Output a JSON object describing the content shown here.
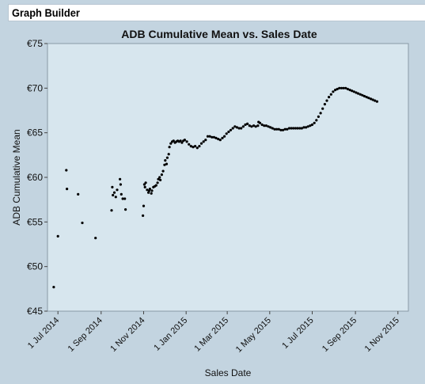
{
  "window": {
    "title": "Graph Builder"
  },
  "chart_data": {
    "type": "scatter",
    "title": "ADB Cumulative Mean vs. Sales Date",
    "xlabel": "Sales Date",
    "ylabel": "ADB Cumulative Mean",
    "x_ticks": [
      "2014-07-01",
      "2014-09-01",
      "2014-11-01",
      "2015-01-01",
      "2015-03-01",
      "2015-05-01",
      "2015-07-01",
      "2015-09-01",
      "2015-11-01"
    ],
    "x_tick_labels": [
      "1 Jul 2014",
      "1 Sep 2014",
      "1 Nov 2014",
      "1 Jan 2015",
      "1 Mar 2015",
      "1 May 2015",
      "1 Jul 2015",
      "1 Sep 2015",
      "1 Nov 2015"
    ],
    "xlim": [
      "2014-06-16",
      "2015-11-16"
    ],
    "ylim": [
      45,
      75
    ],
    "y_ticks": [
      45,
      50,
      55,
      60,
      65,
      70,
      75
    ],
    "y_tick_labels": [
      "€45",
      "€50",
      "€55",
      "€60",
      "€65",
      "€70",
      "€75"
    ],
    "grid": false,
    "marker_color": "#000000",
    "plot_background": "#d7e6ee",
    "points": [
      [
        "2014-06-25",
        47.7
      ],
      [
        "2014-07-01",
        53.4
      ],
      [
        "2014-07-13",
        60.8
      ],
      [
        "2014-07-14",
        58.7
      ],
      [
        "2014-07-30",
        58.1
      ],
      [
        "2014-08-05",
        54.9
      ],
      [
        "2014-08-24",
        53.2
      ],
      [
        "2014-09-16",
        56.3
      ],
      [
        "2014-09-17",
        58.9
      ],
      [
        "2014-09-18",
        58.0
      ],
      [
        "2014-09-20",
        58.3
      ],
      [
        "2014-09-22",
        57.8
      ],
      [
        "2014-09-24",
        58.6
      ],
      [
        "2014-09-28",
        59.8
      ],
      [
        "2014-09-29",
        59.2
      ],
      [
        "2014-09-30",
        58.1
      ],
      [
        "2014-10-02",
        57.6
      ],
      [
        "2014-10-05",
        57.6
      ],
      [
        "2014-10-06",
        56.4
      ],
      [
        "2014-10-31",
        55.7
      ],
      [
        "2014-11-01",
        56.8
      ],
      [
        "2014-11-02",
        59.2
      ],
      [
        "2014-11-03",
        58.9
      ],
      [
        "2014-11-04",
        59.4
      ],
      [
        "2014-11-06",
        58.6
      ],
      [
        "2014-11-08",
        58.3
      ],
      [
        "2014-11-09",
        58.5
      ],
      [
        "2014-11-10",
        58.7
      ],
      [
        "2014-11-12",
        58.2
      ],
      [
        "2014-11-13",
        58.5
      ],
      [
        "2014-11-15",
        58.9
      ],
      [
        "2014-11-17",
        59.0
      ],
      [
        "2014-11-19",
        59.1
      ],
      [
        "2014-11-21",
        59.4
      ],
      [
        "2014-11-22",
        59.8
      ],
      [
        "2014-11-24",
        60.0
      ],
      [
        "2014-11-25",
        59.7
      ],
      [
        "2014-11-27",
        60.3
      ],
      [
        "2014-11-29",
        60.7
      ],
      [
        "2014-12-01",
        61.4
      ],
      [
        "2014-12-02",
        61.9
      ],
      [
        "2014-12-04",
        61.5
      ],
      [
        "2014-12-05",
        62.2
      ],
      [
        "2014-12-07",
        62.6
      ],
      [
        "2014-12-08",
        63.4
      ],
      [
        "2014-12-10",
        63.8
      ],
      [
        "2014-12-12",
        64.0
      ],
      [
        "2014-12-14",
        64.1
      ],
      [
        "2014-12-16",
        63.9
      ],
      [
        "2014-12-18",
        64.0
      ],
      [
        "2014-12-20",
        64.1
      ],
      [
        "2014-12-22",
        64.0
      ],
      [
        "2014-12-24",
        64.1
      ],
      [
        "2014-12-26",
        63.9
      ],
      [
        "2014-12-28",
        64.1
      ],
      [
        "2014-12-30",
        64.2
      ],
      [
        "2015-01-02",
        64.0
      ],
      [
        "2015-01-05",
        63.7
      ],
      [
        "2015-01-08",
        63.5
      ],
      [
        "2015-01-11",
        63.4
      ],
      [
        "2015-01-14",
        63.5
      ],
      [
        "2015-01-17",
        63.3
      ],
      [
        "2015-01-20",
        63.5
      ],
      [
        "2015-01-23",
        63.8
      ],
      [
        "2015-01-26",
        64.0
      ],
      [
        "2015-01-29",
        64.2
      ],
      [
        "2015-02-01",
        64.6
      ],
      [
        "2015-02-04",
        64.6
      ],
      [
        "2015-02-07",
        64.5
      ],
      [
        "2015-02-10",
        64.5
      ],
      [
        "2015-02-13",
        64.4
      ],
      [
        "2015-02-16",
        64.3
      ],
      [
        "2015-02-19",
        64.2
      ],
      [
        "2015-02-22",
        64.4
      ],
      [
        "2015-02-25",
        64.6
      ],
      [
        "2015-02-28",
        64.9
      ],
      [
        "2015-03-03",
        65.1
      ],
      [
        "2015-03-06",
        65.3
      ],
      [
        "2015-03-09",
        65.5
      ],
      [
        "2015-03-12",
        65.7
      ],
      [
        "2015-03-15",
        65.6
      ],
      [
        "2015-03-18",
        65.5
      ],
      [
        "2015-03-21",
        65.5
      ],
      [
        "2015-03-24",
        65.7
      ],
      [
        "2015-03-27",
        65.9
      ],
      [
        "2015-03-30",
        66.0
      ],
      [
        "2015-04-02",
        65.8
      ],
      [
        "2015-04-05",
        65.7
      ],
      [
        "2015-04-08",
        65.8
      ],
      [
        "2015-04-11",
        65.7
      ],
      [
        "2015-04-14",
        65.8
      ],
      [
        "2015-04-15",
        66.2
      ],
      [
        "2015-04-17",
        66.1
      ],
      [
        "2015-04-20",
        65.9
      ],
      [
        "2015-04-23",
        65.8
      ],
      [
        "2015-04-26",
        65.8
      ],
      [
        "2015-04-29",
        65.7
      ],
      [
        "2015-05-02",
        65.6
      ],
      [
        "2015-05-05",
        65.5
      ],
      [
        "2015-05-08",
        65.4
      ],
      [
        "2015-05-11",
        65.4
      ],
      [
        "2015-05-14",
        65.4
      ],
      [
        "2015-05-17",
        65.3
      ],
      [
        "2015-05-20",
        65.3
      ],
      [
        "2015-05-23",
        65.4
      ],
      [
        "2015-05-26",
        65.4
      ],
      [
        "2015-05-29",
        65.5
      ],
      [
        "2015-06-01",
        65.5
      ],
      [
        "2015-06-04",
        65.5
      ],
      [
        "2015-06-07",
        65.5
      ],
      [
        "2015-06-10",
        65.5
      ],
      [
        "2015-06-13",
        65.5
      ],
      [
        "2015-06-16",
        65.5
      ],
      [
        "2015-06-19",
        65.6
      ],
      [
        "2015-06-22",
        65.6
      ],
      [
        "2015-06-25",
        65.7
      ],
      [
        "2015-06-28",
        65.8
      ],
      [
        "2015-07-01",
        65.9
      ],
      [
        "2015-07-04",
        66.1
      ],
      [
        "2015-07-07",
        66.4
      ],
      [
        "2015-07-10",
        66.8
      ],
      [
        "2015-07-13",
        67.2
      ],
      [
        "2015-07-16",
        67.7
      ],
      [
        "2015-07-19",
        68.2
      ],
      [
        "2015-07-22",
        68.6
      ],
      [
        "2015-07-25",
        69.0
      ],
      [
        "2015-07-28",
        69.3
      ],
      [
        "2015-07-31",
        69.6
      ],
      [
        "2015-08-03",
        69.8
      ],
      [
        "2015-08-06",
        69.9
      ],
      [
        "2015-08-09",
        70.0
      ],
      [
        "2015-08-12",
        70.0
      ],
      [
        "2015-08-15",
        70.0
      ],
      [
        "2015-08-18",
        70.0
      ],
      [
        "2015-08-21",
        69.9
      ],
      [
        "2015-08-24",
        69.8
      ],
      [
        "2015-08-27",
        69.7
      ],
      [
        "2015-08-30",
        69.6
      ],
      [
        "2015-09-02",
        69.5
      ],
      [
        "2015-09-05",
        69.4
      ],
      [
        "2015-09-08",
        69.3
      ],
      [
        "2015-09-11",
        69.2
      ],
      [
        "2015-09-14",
        69.1
      ],
      [
        "2015-09-17",
        69.0
      ],
      [
        "2015-09-20",
        68.9
      ],
      [
        "2015-09-23",
        68.8
      ],
      [
        "2015-09-26",
        68.7
      ],
      [
        "2015-09-29",
        68.6
      ],
      [
        "2015-10-02",
        68.5
      ]
    ]
  }
}
